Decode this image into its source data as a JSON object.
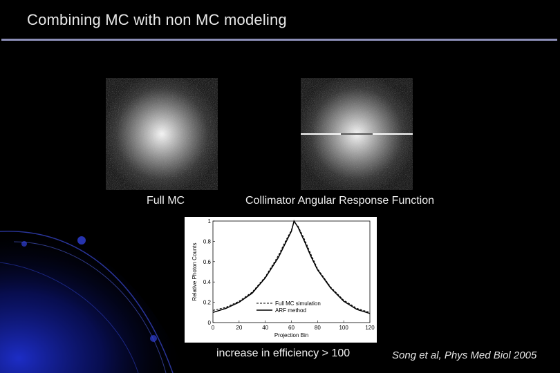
{
  "slide": {
    "title": "Combining MC with non MC modeling",
    "caption_left": "Full MC",
    "caption_right": "Collimator Angular Response Function",
    "efficiency_note": "increase in efficiency > 100",
    "citation": "Song et al, Phys Med Biol 2005"
  },
  "colors": {
    "accent_rule": "#8d8fb8",
    "swoosh": "#1a2aa8"
  },
  "chart_data": {
    "type": "line",
    "title": "",
    "xlabel": "Projection Bin",
    "ylabel": "Relative Photon Counts",
    "xlim": [
      0,
      120
    ],
    "ylim": [
      0,
      1
    ],
    "x_ticks": [
      "0",
      "20",
      "40",
      "60",
      "80",
      "100",
      "120"
    ],
    "y_ticks": [
      "0",
      "0.2",
      "0.4",
      "0.6",
      "0.8",
      "1"
    ],
    "legend_position": "bottom-right",
    "x": [
      0,
      10,
      20,
      30,
      40,
      50,
      55,
      60,
      62,
      65,
      70,
      75,
      80,
      90,
      100,
      110,
      120
    ],
    "series": [
      {
        "name": "Full MC simulation",
        "style": "dashed",
        "values": [
          0.12,
          0.15,
          0.21,
          0.3,
          0.45,
          0.66,
          0.79,
          0.91,
          0.99,
          0.95,
          0.82,
          0.67,
          0.53,
          0.35,
          0.22,
          0.14,
          0.1
        ]
      },
      {
        "name": "ARF method",
        "style": "solid",
        "values": [
          0.1,
          0.14,
          0.2,
          0.29,
          0.44,
          0.64,
          0.77,
          0.9,
          1.0,
          0.94,
          0.8,
          0.65,
          0.52,
          0.34,
          0.21,
          0.13,
          0.09
        ]
      }
    ]
  }
}
